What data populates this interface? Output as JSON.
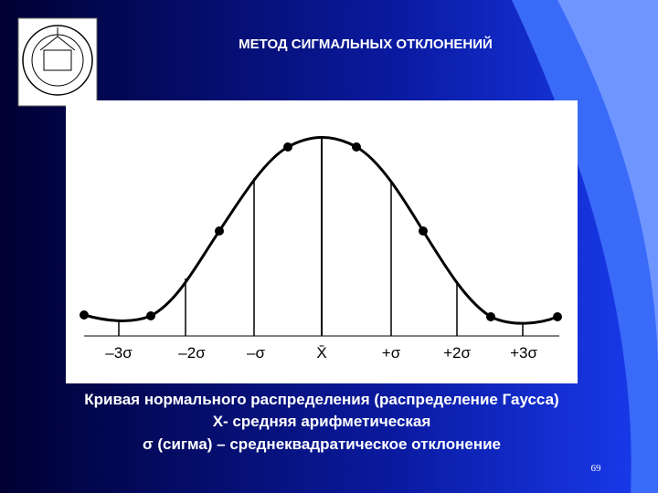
{
  "title": "МЕТОД СИГМАЛЬНЫХ ОТКЛОНЕНИЙ",
  "axis_labels": [
    "–3σ",
    "–2σ",
    "–σ",
    "X̄",
    "+σ",
    "+2σ",
    "+3σ"
  ],
  "caption": [
    "Кривая нормального распределения (распределение Гаусса)",
    "X- средняя арифметическая",
    "σ (сигма) – среднеквадратическое отклонение"
  ],
  "page_number": "69"
}
